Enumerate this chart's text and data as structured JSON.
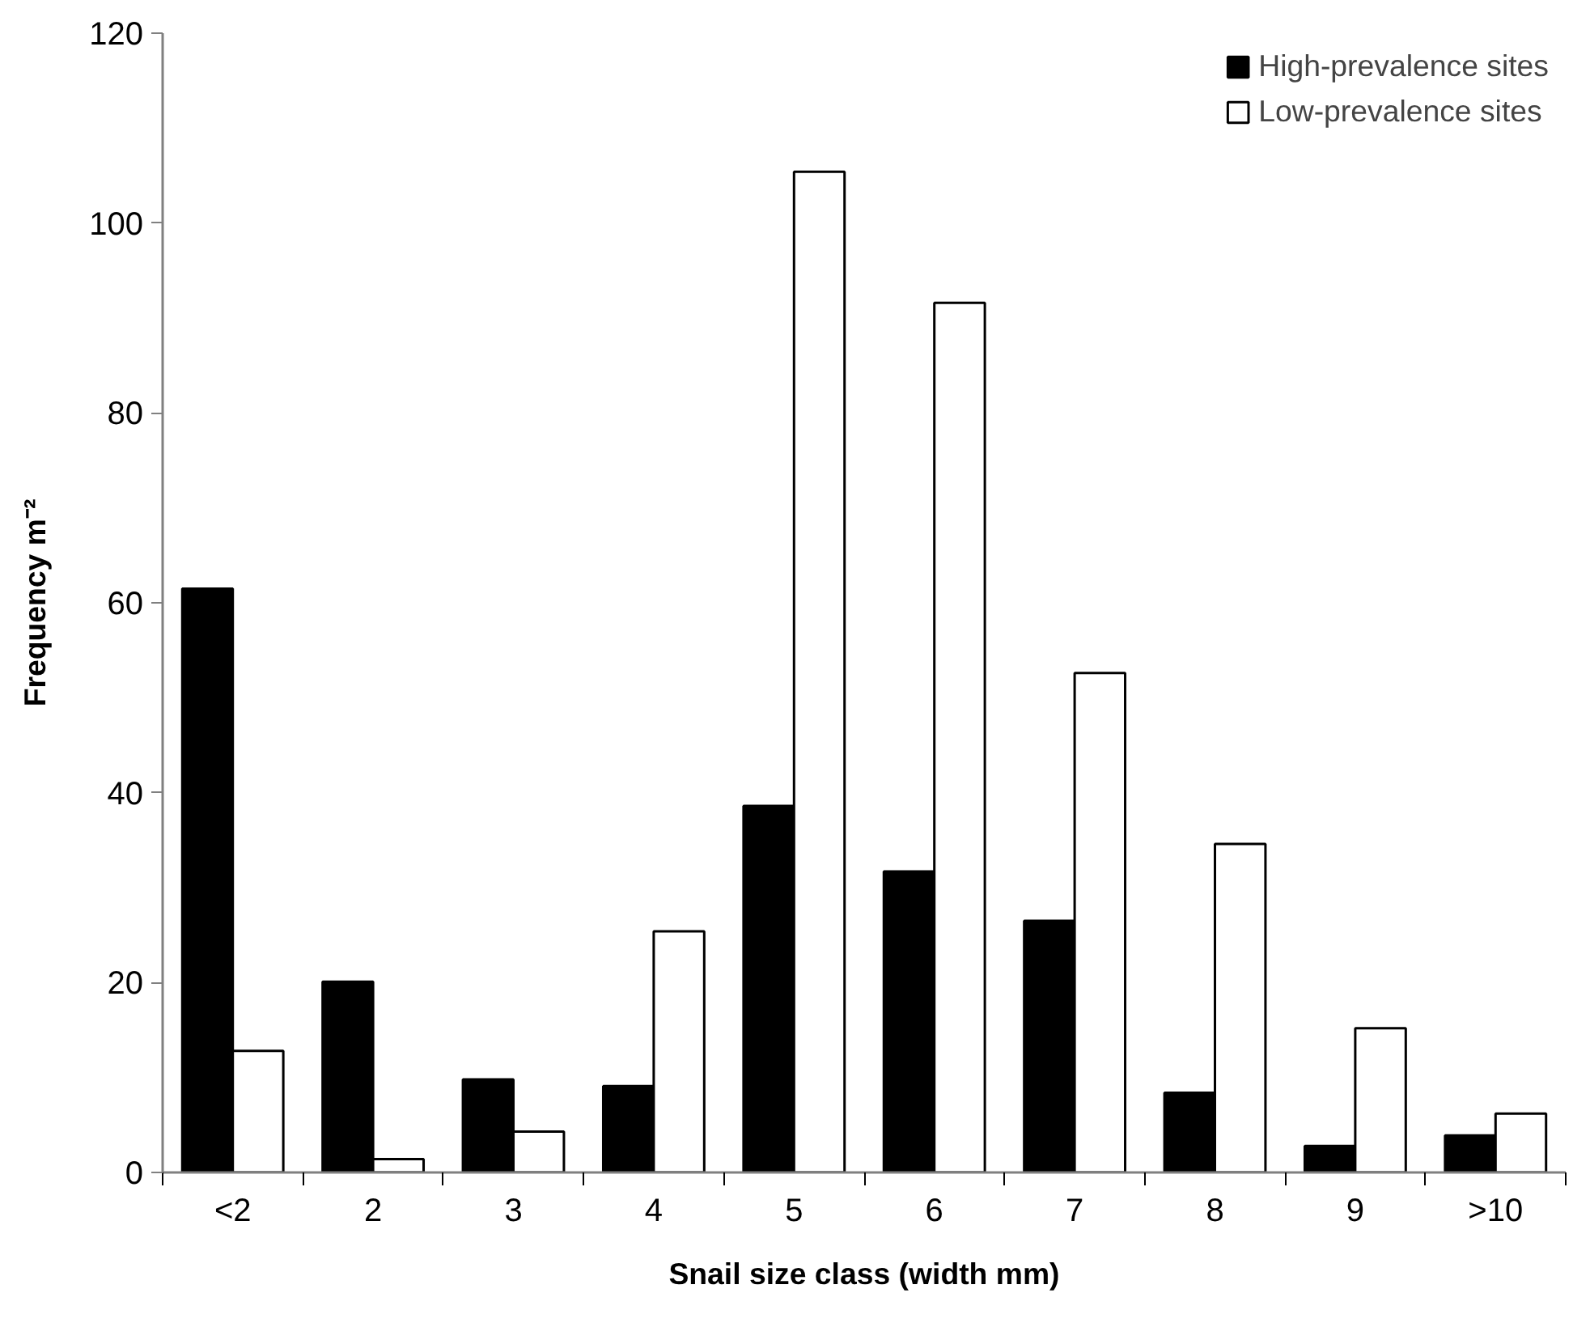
{
  "chart_data": {
    "type": "bar",
    "xlabel": "Snail size class (width mm)",
    "ylabel": "Frequency m⁻²",
    "categories": [
      "<2",
      "2",
      "3",
      "4",
      "5",
      "6",
      "7",
      "8",
      "9",
      ">10"
    ],
    "series": [
      {
        "name": "High-prevalence sites",
        "color": "#000000",
        "values": [
          61.5,
          20.1,
          9.8,
          9.1,
          38.6,
          31.7,
          26.5,
          8.4,
          2.8,
          3.9
        ]
      },
      {
        "name": "Low-prevalence sites",
        "color": "#ffffff",
        "values": [
          12.8,
          1.4,
          4.3,
          25.4,
          105.4,
          91.6,
          52.6,
          34.6,
          15.2,
          6.2
        ]
      }
    ],
    "ylim": [
      0,
      120
    ],
    "yticks": [
      0,
      20,
      40,
      60,
      80,
      100,
      120
    ],
    "grid": false,
    "legend": "top right"
  }
}
